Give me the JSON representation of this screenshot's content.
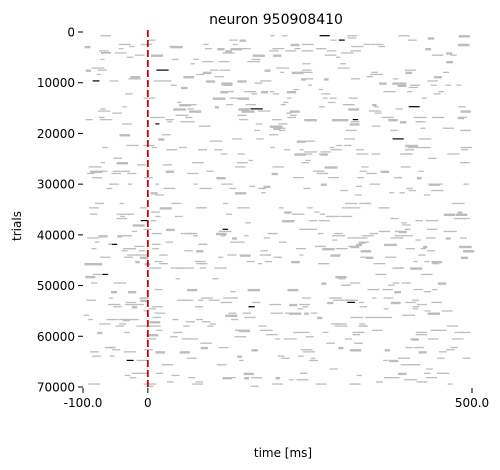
{
  "chart_data": {
    "type": "raster",
    "title": "neuron 950908410",
    "xlabel": "time [ms]",
    "ylabel": "trials",
    "xlim": [
      -100.0,
      500.0
    ],
    "ylim": [
      70000,
      0
    ],
    "y_inverted": true,
    "x_ticks": [
      {
        "value": -100.0,
        "label": "-100.0"
      },
      {
        "value": 0,
        "label": "0"
      },
      {
        "value": 500.0,
        "label": "500.0"
      }
    ],
    "y_ticks": [
      {
        "value": 0,
        "label": "0"
      },
      {
        "value": 10000,
        "label": "10000"
      },
      {
        "value": 20000,
        "label": "20000"
      },
      {
        "value": 30000,
        "label": "30000"
      },
      {
        "value": 40000,
        "label": "40000"
      },
      {
        "value": 50000,
        "label": "50000"
      },
      {
        "value": 60000,
        "label": "60000"
      },
      {
        "value": 70000,
        "label": "70000"
      }
    ],
    "stimulus_onset_ms": 0,
    "grid": false,
    "colors": {
      "spikes": "#bdbdbd",
      "dense_spikes": "#000000",
      "onset_line": "#cc0000"
    }
  }
}
